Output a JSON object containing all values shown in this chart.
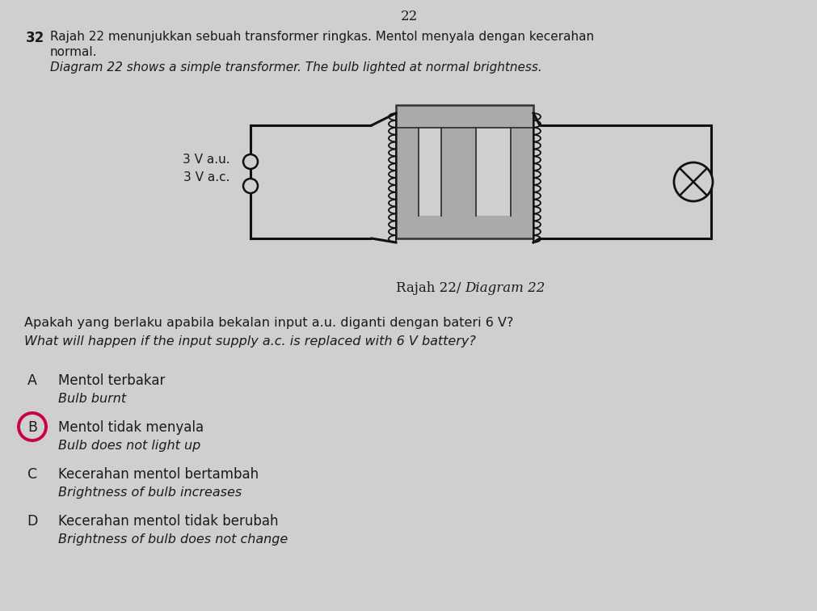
{
  "page_number": "22",
  "question_number": "32",
  "q_line1_malay": "Rajah 22 menunjukkan sebuah transformer ringkas. Mentol menyala dengan kecerahan",
  "q_line2_malay": "normal.",
  "q_line3_english": "Diagram 22 shows a simple transformer. The bulb lighted at normal brightness.",
  "input_label_malay": "3 V a.u.",
  "input_label_english": "3 V a.c.",
  "diagram_label_roman": "Rajah 22/ ",
  "diagram_label_italic": "Diagram 22",
  "stem_malay": "Apakah yang berlaku apabila bekalan input a.u. diganti dengan bateri 6 V?",
  "stem_english": "What will happen if the input supply a.c. is replaced with 6 V battery?",
  "options": [
    {
      "letter": "A",
      "malay": "Mentol terbakar",
      "english": "Bulb burnt",
      "circled": false
    },
    {
      "letter": "B",
      "malay": "Mentol tidak menyala",
      "english": "Bulb does not light up",
      "circled": true
    },
    {
      "letter": "C",
      "malay": "Kecerahan mentol bertambah",
      "english": "Brightness of bulb increases",
      "circled": false
    },
    {
      "letter": "D",
      "malay": "Kecerahan mentol tidak berubah",
      "english": "Brightness of bulb does not change",
      "circled": false
    }
  ],
  "bg_color": "#d0cfcf",
  "text_color": "#1a1a1a",
  "circle_color": "#cc0044",
  "wire_color": "#111111",
  "core_color": "#888888",
  "coil_color": "#111111"
}
